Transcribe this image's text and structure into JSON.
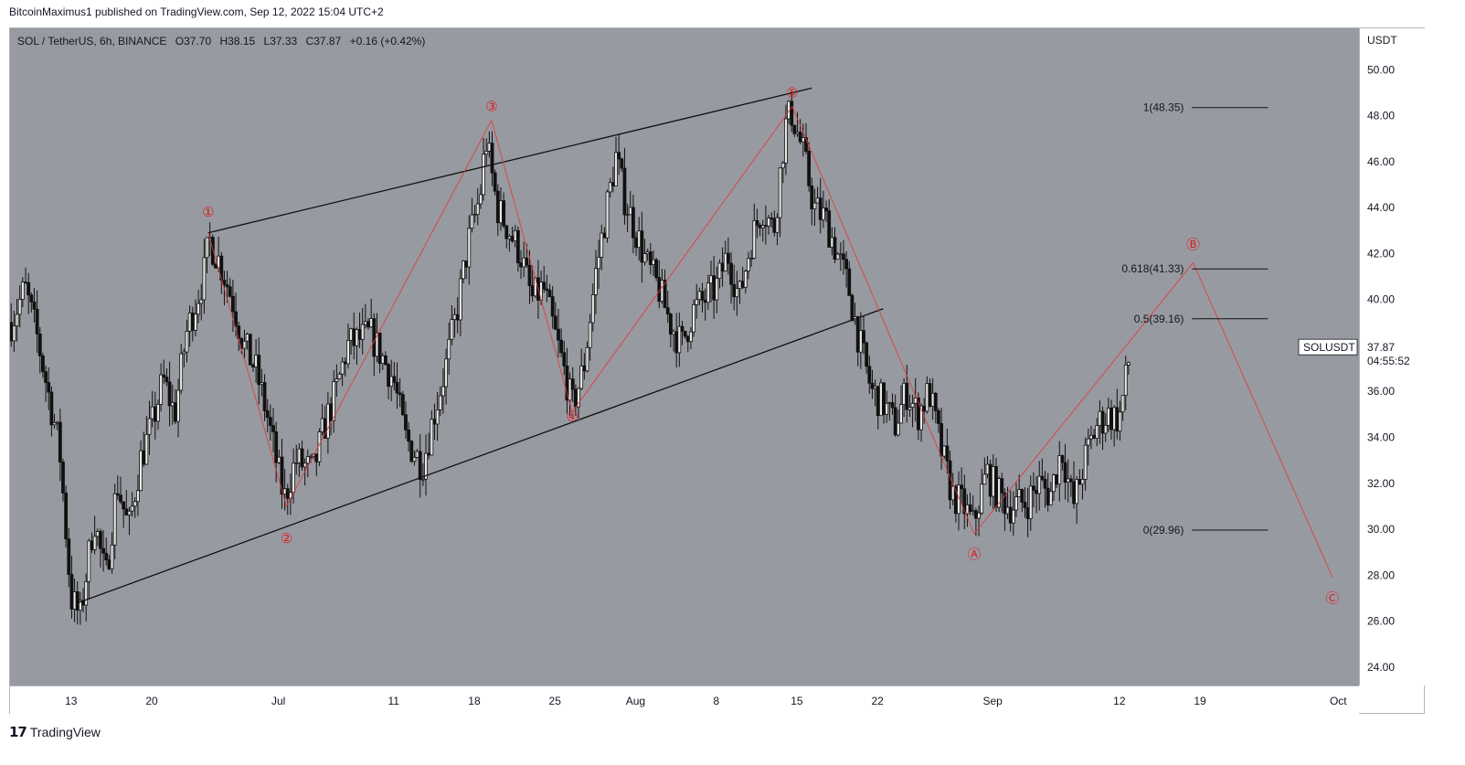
{
  "header": {
    "published_text": "BitcoinMaximus1 published on TradingView.com, Sep 12, 2022 15:04 UTC+2"
  },
  "legend": {
    "symbol": "SOL / TetherUS, 6h, BINANCE",
    "o_label": "O",
    "o_value": "37.70",
    "h_label": "H",
    "h_value": "38.15",
    "l_label": "L",
    "l_value": "37.33",
    "c_label": "C",
    "c_value": "37.87",
    "change": "+0.16 (+0.42%)"
  },
  "price_tag": {
    "symbol": "SOLUSDT",
    "price": "37.87",
    "countdown": "04:55:52"
  },
  "footer": {
    "brand": "TradingView"
  },
  "colors": {
    "plot_bg": "#989aa1",
    "candle": "#111111",
    "wave": "#e03a3a",
    "trendline": "#111111",
    "label_red": "#d81e1e"
  },
  "chart_data": {
    "type": "candlestick",
    "unit": "USDT",
    "ylim": [
      23.2,
      51.8
    ],
    "y_ticks": [
      "50.00",
      "48.00",
      "46.00",
      "44.00",
      "42.00",
      "40.00",
      "38.00",
      "36.00",
      "34.00",
      "32.00",
      "30.00",
      "28.00",
      "26.00",
      "24.00"
    ],
    "x_ticks": [
      {
        "label": "13",
        "day": 0
      },
      {
        "label": "20",
        "day": 7
      },
      {
        "label": "Jul",
        "day": 18
      },
      {
        "label": "11",
        "day": 28
      },
      {
        "label": "18",
        "day": 35
      },
      {
        "label": "25",
        "day": 42
      },
      {
        "label": "Aug",
        "day": 49
      },
      {
        "label": "8",
        "day": 56
      },
      {
        "label": "15",
        "day": 63
      },
      {
        "label": "22",
        "day": 70
      },
      {
        "label": "Sep",
        "day": 80
      },
      {
        "label": "12",
        "day": 91
      },
      {
        "label": "19",
        "day": 98
      },
      {
        "label": "Oct",
        "day": 110
      }
    ],
    "xlim_days": [
      -5.3,
      111.8
    ],
    "price_path": [
      {
        "day": -5.2,
        "v": 39.0
      },
      {
        "day": -4,
        "v": 40.5
      },
      {
        "day": -3,
        "v": 38.5
      },
      {
        "day": -2,
        "v": 36.0
      },
      {
        "day": -1,
        "v": 33.5
      },
      {
        "day": 0,
        "v": 27.0
      },
      {
        "day": 0.8,
        "v": 26.2
      },
      {
        "day": 2,
        "v": 30.5
      },
      {
        "day": 3,
        "v": 27.8
      },
      {
        "day": 4,
        "v": 32.0
      },
      {
        "day": 5,
        "v": 30.0
      },
      {
        "day": 6,
        "v": 33.0
      },
      {
        "day": 7,
        "v": 34.5
      },
      {
        "day": 8,
        "v": 36.5
      },
      {
        "day": 9,
        "v": 35.0
      },
      {
        "day": 10,
        "v": 38.5
      },
      {
        "day": 11.5,
        "v": 41.0
      },
      {
        "day": 12,
        "v": 42.6
      },
      {
        "day": 13,
        "v": 41.5
      },
      {
        "day": 14,
        "v": 40.0
      },
      {
        "day": 15,
        "v": 38.0
      },
      {
        "day": 16,
        "v": 37.0
      },
      {
        "day": 17,
        "v": 35.0
      },
      {
        "day": 18,
        "v": 32.5
      },
      {
        "day": 18.5,
        "v": 31.3
      },
      {
        "day": 19.5,
        "v": 33.0
      },
      {
        "day": 21,
        "v": 32.5
      },
      {
        "day": 22,
        "v": 34.5
      },
      {
        "day": 23,
        "v": 36.0
      },
      {
        "day": 24,
        "v": 38.0
      },
      {
        "day": 26,
        "v": 38.5
      },
      {
        "day": 28,
        "v": 36.5
      },
      {
        "day": 29,
        "v": 34.0
      },
      {
        "day": 30.5,
        "v": 32.8
      },
      {
        "day": 31.5,
        "v": 35.0
      },
      {
        "day": 32.5,
        "v": 37.0
      },
      {
        "day": 33.5,
        "v": 39.5
      },
      {
        "day": 34.5,
        "v": 42.5
      },
      {
        "day": 35.5,
        "v": 44.5
      },
      {
        "day": 36,
        "v": 47.0
      },
      {
        "day": 37,
        "v": 44.0
      },
      {
        "day": 38,
        "v": 43.0
      },
      {
        "day": 39,
        "v": 42.0
      },
      {
        "day": 40,
        "v": 40.0
      },
      {
        "day": 41,
        "v": 40.5
      },
      {
        "day": 42,
        "v": 38.5
      },
      {
        "day": 43,
        "v": 36.5
      },
      {
        "day": 43.5,
        "v": 35.3
      },
      {
        "day": 44.5,
        "v": 37.0
      },
      {
        "day": 45.5,
        "v": 41.0
      },
      {
        "day": 46.5,
        "v": 44.0
      },
      {
        "day": 47.3,
        "v": 46.2
      },
      {
        "day": 48,
        "v": 44.5
      },
      {
        "day": 49,
        "v": 43.0
      },
      {
        "day": 50,
        "v": 41.5
      },
      {
        "day": 51,
        "v": 40.5
      },
      {
        "day": 52,
        "v": 39.0
      },
      {
        "day": 53,
        "v": 38.0
      },
      {
        "day": 54,
        "v": 39.5
      },
      {
        "day": 55,
        "v": 40.0
      },
      {
        "day": 56,
        "v": 40.5
      },
      {
        "day": 57,
        "v": 42.0
      },
      {
        "day": 58,
        "v": 40.0
      },
      {
        "day": 59,
        "v": 42.5
      },
      {
        "day": 60,
        "v": 44.0
      },
      {
        "day": 61,
        "v": 43.0
      },
      {
        "day": 62,
        "v": 47.5
      },
      {
        "day": 62.5,
        "v": 48.2
      },
      {
        "day": 63.5,
        "v": 46.5
      },
      {
        "day": 64.5,
        "v": 44.0
      },
      {
        "day": 65.5,
        "v": 43.5
      },
      {
        "day": 66.5,
        "v": 42.0
      },
      {
        "day": 67.5,
        "v": 40.5
      },
      {
        "day": 68.5,
        "v": 38.0
      },
      {
        "day": 69.5,
        "v": 36.0
      },
      {
        "day": 70.5,
        "v": 35.5
      },
      {
        "day": 71.5,
        "v": 34.5
      },
      {
        "day": 72.5,
        "v": 36.0
      },
      {
        "day": 73.5,
        "v": 35.0
      },
      {
        "day": 74.5,
        "v": 36.0
      },
      {
        "day": 75.5,
        "v": 33.5
      },
      {
        "day": 76.5,
        "v": 31.5
      },
      {
        "day": 77.5,
        "v": 31.0
      },
      {
        "day": 78.3,
        "v": 30.2
      },
      {
        "day": 79.5,
        "v": 32.5
      },
      {
        "day": 80.5,
        "v": 31.5
      },
      {
        "day": 81.5,
        "v": 31.0
      },
      {
        "day": 83,
        "v": 31.2
      },
      {
        "day": 84,
        "v": 32.0
      },
      {
        "day": 85,
        "v": 31.5
      },
      {
        "day": 86,
        "v": 33.5
      },
      {
        "day": 87,
        "v": 31.0
      },
      {
        "day": 88,
        "v": 33.0
      },
      {
        "day": 89,
        "v": 34.5
      },
      {
        "day": 90,
        "v": 35.0
      },
      {
        "day": 91,
        "v": 34.8
      },
      {
        "day": 92,
        "v": 37.87
      }
    ],
    "elliott_wave": {
      "points": [
        {
          "label": "1",
          "day": 11.9,
          "v": 42.9
        },
        {
          "label": "2",
          "day": 18.7,
          "v": 31.0
        },
        {
          "label": "3",
          "day": 36.5,
          "v": 47.8
        },
        {
          "label": "4",
          "day": 43.5,
          "v": 35.1
        },
        {
          "label": "5",
          "day": 62.6,
          "v": 48.4
        }
      ],
      "label_values": {
        "1": 43.8,
        "2": 29.6,
        "3": 48.4,
        "4": 34.9,
        "5": 49.0
      }
    },
    "projected_path": [
      {
        "label": "5",
        "day": 62.6,
        "v": 48.4
      },
      {
        "label": "A",
        "day": 78.4,
        "v": 29.8
      },
      {
        "label": "B",
        "day": 97.4,
        "v": 41.6
      },
      {
        "label": "C",
        "day": 109.5,
        "v": 27.9
      }
    ],
    "projected_label_values": {
      "A": 28.9,
      "B": 42.4,
      "C": 27.0
    },
    "wedge_lines": [
      {
        "from": {
          "day": 11.9,
          "v": 42.9
        },
        "to": {
          "day": 64.3,
          "v": 49.2
        }
      },
      {
        "from": {
          "day": 0.6,
          "v": 26.8
        },
        "to": {
          "day": 70.5,
          "v": 39.6
        }
      }
    ],
    "fibonacci": {
      "line_x_days": [
        97.3,
        103.9
      ],
      "label_day": 96.6,
      "levels": [
        {
          "ratio": "1",
          "value": 48.35,
          "label": "1(48.35)"
        },
        {
          "ratio": "0.618",
          "value": 41.33,
          "label": "0.618(41.33)"
        },
        {
          "ratio": "0.5",
          "value": 39.16,
          "label": "0.5(39.16)"
        },
        {
          "ratio": "0",
          "value": 29.96,
          "label": "0(29.96)"
        }
      ]
    },
    "last_price": 37.87
  }
}
